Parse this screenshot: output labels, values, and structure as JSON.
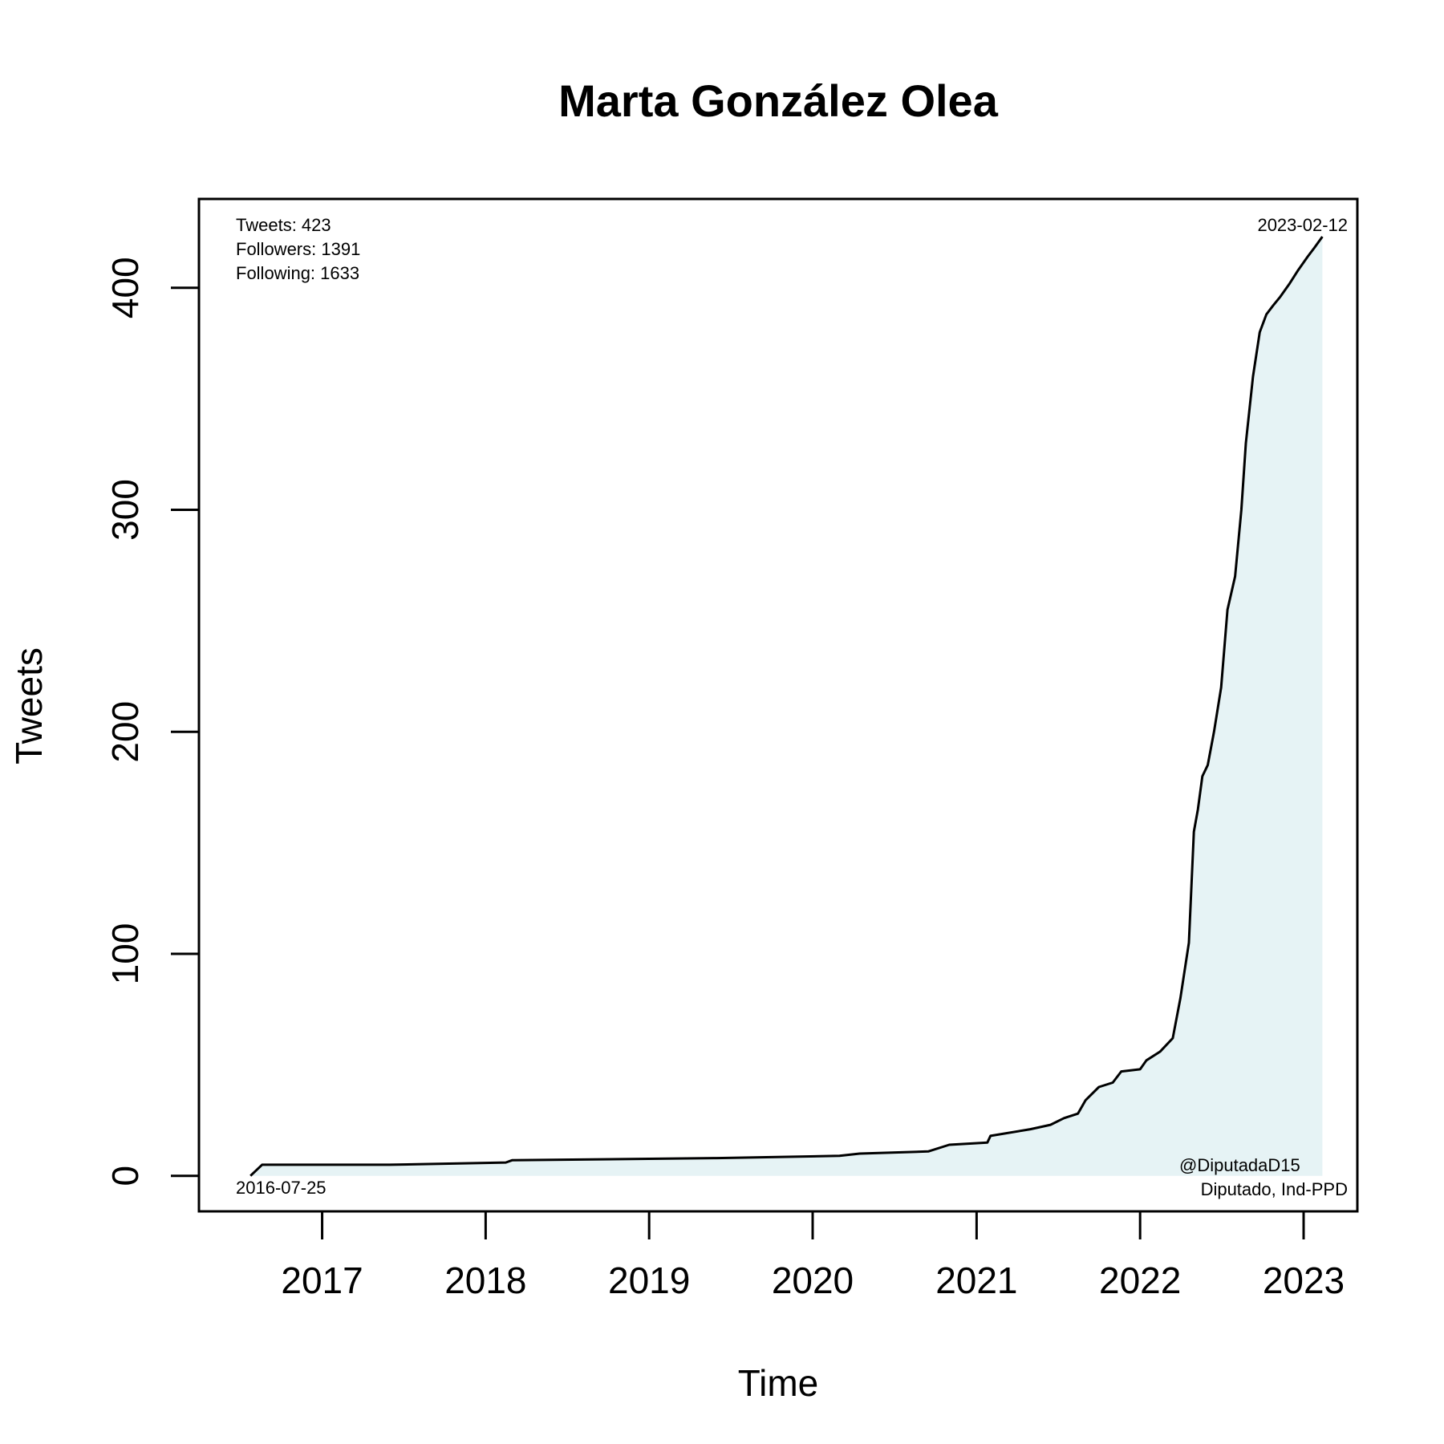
{
  "chart_data": {
    "type": "area",
    "title": "Marta González Olea",
    "xlabel": "Time",
    "ylabel": "Tweets",
    "x_ticks": [
      "2017",
      "2018",
      "2019",
      "2020",
      "2021",
      "2022",
      "2023"
    ],
    "y_ticks": [
      "0",
      "100",
      "200",
      "300",
      "400"
    ],
    "xlim": [
      "2016-04-01",
      "2023-05-01"
    ],
    "ylim": [
      -16,
      440
    ],
    "grid": false,
    "fill_color": "#e6f3f5",
    "line_color": "#000000",
    "stats": {
      "tweets": "Tweets: 423",
      "followers": "Followers: 1391",
      "following": "Following: 1633"
    },
    "start_date_label": "2016-07-25",
    "end_date_label": "2023-02-12",
    "handle": "@DiputadaD15",
    "role": "Diputado, Ind-PPD",
    "series": [
      {
        "x": [
          "2016-07-25",
          "2016-08-20",
          "2017-06-01",
          "2018-02-15",
          "2018-03-01",
          "2019-06-01",
          "2020-03-01",
          "2020-04-15",
          "2020-09-15",
          "2020-11-01",
          "2021-01-25",
          "2021-02-01",
          "2021-05-01",
          "2021-06-15",
          "2021-07-15",
          "2021-08-15",
          "2021-09-01",
          "2021-10-01",
          "2021-11-01",
          "2021-11-20",
          "2022-01-01",
          "2022-01-15",
          "2022-02-15",
          "2022-03-15",
          "2022-04-01",
          "2022-04-20",
          "2022-05-01",
          "2022-05-10",
          "2022-05-20",
          "2022-06-01",
          "2022-06-15",
          "2022-07-01",
          "2022-07-15",
          "2022-08-01",
          "2022-08-15",
          "2022-08-25",
          "2022-09-10",
          "2022-09-25",
          "2022-10-10",
          "2022-10-25",
          "2022-11-10",
          "2022-12-01",
          "2022-12-20",
          "2023-01-10",
          "2023-01-25",
          "2023-02-12"
        ],
        "y": [
          0,
          5,
          5,
          6,
          7,
          8,
          9,
          10,
          11,
          14,
          15,
          18,
          21,
          23,
          26,
          28,
          34,
          40,
          42,
          47,
          48,
          52,
          56,
          62,
          80,
          105,
          155,
          165,
          180,
          185,
          200,
          220,
          255,
          270,
          300,
          330,
          360,
          380,
          388,
          392,
          396,
          402,
          408,
          414,
          418,
          423
        ]
      }
    ]
  }
}
